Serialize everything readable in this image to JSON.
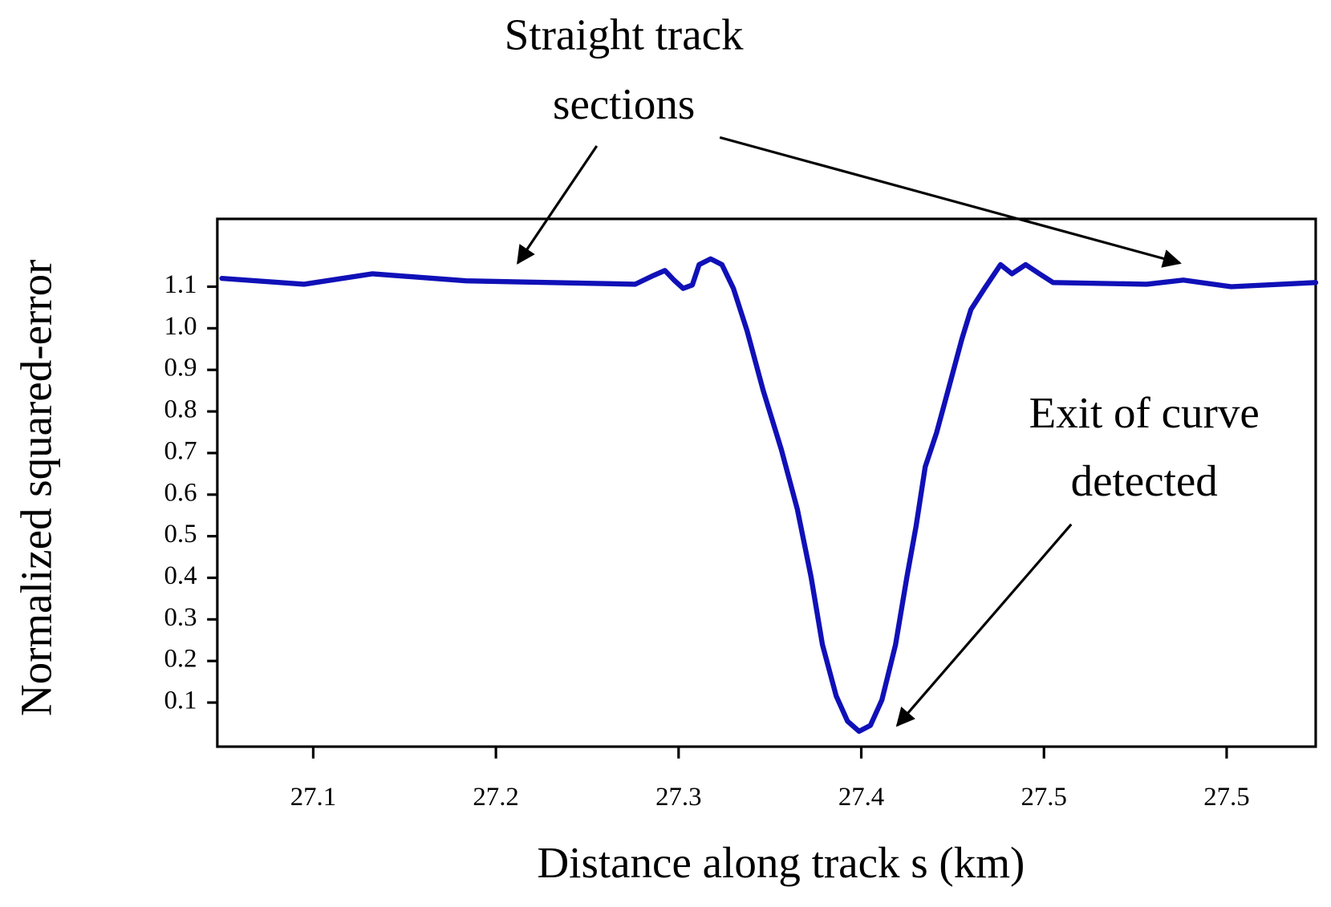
{
  "chart_data": {
    "type": "line",
    "xlabel": "Distance along track s (km)",
    "ylabel": "Normalized squared-error",
    "x": [
      27.1,
      27.136,
      27.166,
      27.207,
      27.281,
      27.289,
      27.294,
      27.298,
      27.302,
      27.306,
      27.309,
      27.314,
      27.319,
      27.324,
      27.33,
      27.337,
      27.345,
      27.352,
      27.358,
      27.363,
      27.369,
      27.374,
      27.379,
      27.384,
      27.389,
      27.395,
      27.4,
      27.404,
      27.408,
      27.413,
      27.419,
      27.424,
      27.428,
      27.434,
      27.441,
      27.446,
      27.452,
      27.458,
      27.464,
      27.505,
      27.521,
      27.542,
      27.579
    ],
    "values": [
      1.12,
      1.106,
      1.131,
      1.114,
      1.106,
      1.127,
      1.139,
      1.116,
      1.096,
      1.104,
      1.153,
      1.167,
      1.153,
      1.096,
      0.994,
      0.851,
      0.708,
      0.565,
      0.402,
      0.239,
      0.116,
      0.055,
      0.031,
      0.045,
      0.106,
      0.239,
      0.402,
      0.524,
      0.667,
      0.749,
      0.871,
      0.973,
      1.045,
      1.096,
      1.153,
      1.131,
      1.153,
      1.131,
      1.11,
      1.106,
      1.116,
      1.1,
      1.11
    ],
    "color": "#1010b8",
    "xlim": [
      27.098,
      27.579
    ],
    "ylim": [
      -0.006,
      1.263
    ],
    "xticks": [
      {
        "value": 27.14,
        "label": "27.1"
      },
      {
        "value": 27.22,
        "label": "27.2"
      },
      {
        "value": 27.3,
        "label": "27.3"
      },
      {
        "value": 27.38,
        "label": "27.4"
      },
      {
        "value": 27.46,
        "label": "27.5"
      },
      {
        "value": 27.54,
        "label": "27.5"
      }
    ],
    "yticks": [
      0.1,
      0.2,
      0.3,
      0.4,
      0.5,
      0.6,
      0.7,
      0.8,
      0.9,
      {
        "value": 1,
        "label": "1.0"
      },
      1.1
    ],
    "grid": false,
    "annotations": [
      {
        "lines": [
          "Straight track",
          "sections"
        ]
      },
      {
        "lines": [
          "Exit of curve",
          "detected"
        ]
      }
    ]
  }
}
